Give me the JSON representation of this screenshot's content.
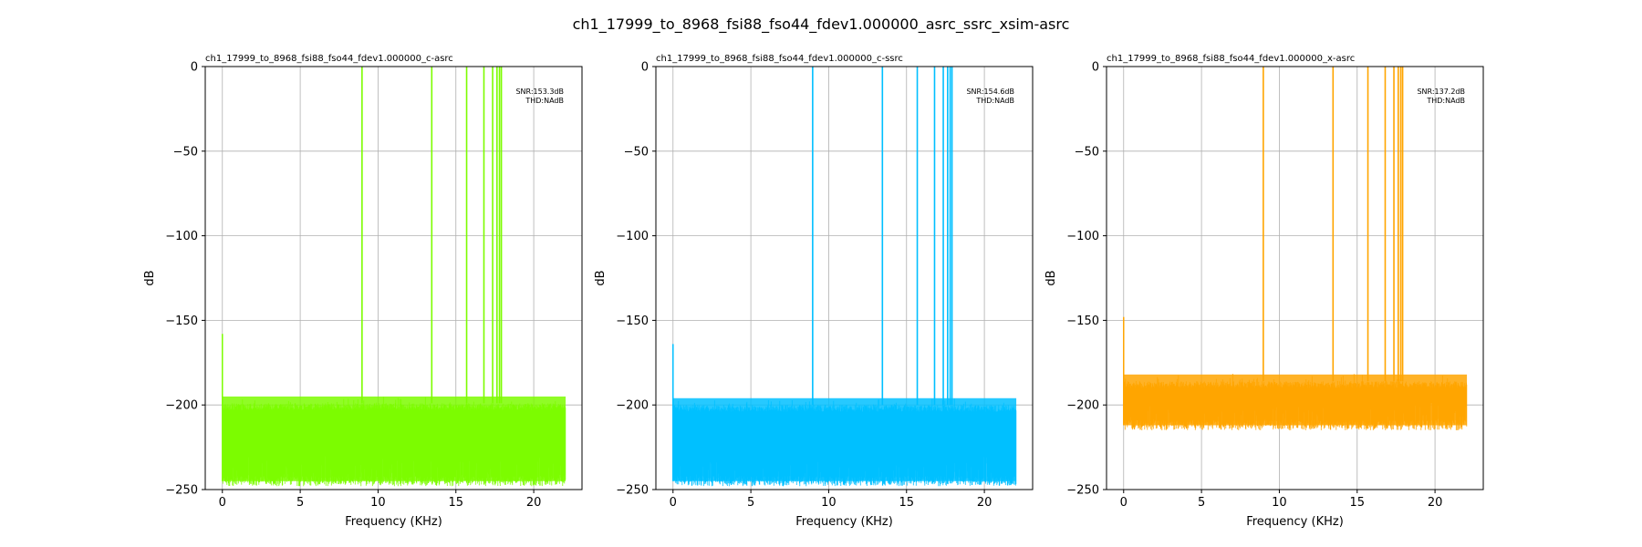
{
  "figure": {
    "suptitle": "ch1_17999_to_8968_fsi88_fso44_fdev1.000000_asrc_ssrc_xsim-asrc"
  },
  "chart_data": [
    {
      "type": "line",
      "title": "ch1_17999_to_8968_fsi88_fso44_fdev1.000000_c-asrc",
      "xlabel": "Frequency (KHz)",
      "ylabel": "dB",
      "xlim": [
        -1.1,
        23.1
      ],
      "ylim": [
        -250,
        0
      ],
      "xticks": [
        0,
        5,
        10,
        15,
        20
      ],
      "xtick_labels": [
        "0",
        "5",
        "10",
        "15",
        "20"
      ],
      "yticks": [
        0,
        -50,
        -100,
        -150,
        -200,
        -250
      ],
      "ytick_labels": [
        "0",
        "−50",
        "−100",
        "−150",
        "−200",
        "−250"
      ],
      "grid": true,
      "color": "#7CFC00",
      "dc_spike_db": -158,
      "noise_floor_db": {
        "top": -199,
        "bottom": -245
      },
      "tone_freqs_khz": [
        8.97,
        13.45,
        15.69,
        16.8,
        17.36,
        17.64,
        17.8,
        17.92
      ],
      "tone_peak_db": 0,
      "freq_max_khz": 22.05,
      "annotations": [
        "SNR:153.3dB",
        "THD:NAdB"
      ]
    },
    {
      "type": "line",
      "title": "ch1_17999_to_8968_fsi88_fso44_fdev1.000000_c-ssrc",
      "xlabel": "Frequency (KHz)",
      "ylabel": "dB",
      "xlim": [
        -1.1,
        23.1
      ],
      "ylim": [
        -250,
        0
      ],
      "xticks": [
        0,
        5,
        10,
        15,
        20
      ],
      "xtick_labels": [
        "0",
        "5",
        "10",
        "15",
        "20"
      ],
      "yticks": [
        0,
        -50,
        -100,
        -150,
        -200,
        -250
      ],
      "ytick_labels": [
        "0",
        "−50",
        "−100",
        "−150",
        "−200",
        "−250"
      ],
      "grid": true,
      "color": "#00BFFF",
      "dc_spike_db": -164,
      "noise_floor_db": {
        "top": -200,
        "bottom": -245
      },
      "tone_freqs_khz": [
        8.97,
        13.45,
        15.69,
        16.8,
        17.36,
        17.64,
        17.8,
        17.92
      ],
      "tone_peak_db": 0,
      "freq_max_khz": 22.05,
      "annotations": [
        "SNR:154.6dB",
        "THD:NAdB"
      ]
    },
    {
      "type": "line",
      "title": "ch1_17999_to_8968_fsi88_fso44_fdev1.000000_x-asrc",
      "xlabel": "Frequency (KHz)",
      "ylabel": "dB",
      "xlim": [
        -1.1,
        23.1
      ],
      "ylim": [
        -250,
        0
      ],
      "xticks": [
        0,
        5,
        10,
        15,
        20
      ],
      "xtick_labels": [
        "0",
        "5",
        "10",
        "15",
        "20"
      ],
      "yticks": [
        0,
        -50,
        -100,
        -150,
        -200,
        -250
      ],
      "ytick_labels": [
        "0",
        "−50",
        "−100",
        "−150",
        "−200",
        "−250"
      ],
      "grid": true,
      "color": "#FFA500",
      "dc_spike_db": -148,
      "noise_floor_db": {
        "top": -186,
        "bottom": -212
      },
      "tone_freqs_khz": [
        8.97,
        13.45,
        15.69,
        16.8,
        17.36,
        17.64,
        17.8,
        17.92
      ],
      "tone_peak_db": 0,
      "freq_max_khz": 22.05,
      "annotations": [
        "SNR:137.2dB",
        "THD:NAdB"
      ]
    }
  ]
}
